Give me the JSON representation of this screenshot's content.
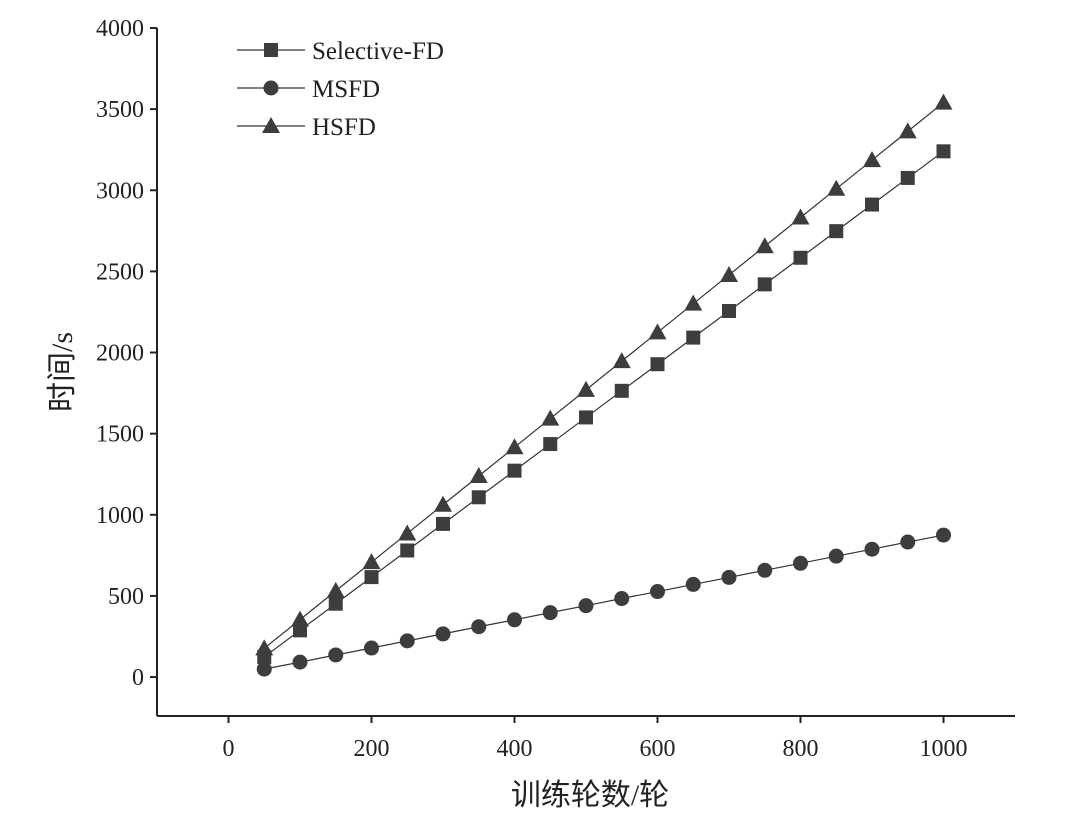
{
  "chart_data": {
    "type": "line",
    "title": "",
    "xlabel": "训练轮数/轮",
    "ylabel": "时间/s",
    "xlim": [
      -100,
      1100
    ],
    "ylim": [
      -240,
      4000
    ],
    "xticks": [
      0,
      200,
      400,
      600,
      800,
      1000
    ],
    "yticks": [
      0,
      500,
      1000,
      1500,
      2000,
      2500,
      3000,
      3500,
      4000
    ],
    "grid": false,
    "legend_position": "top-left",
    "x": [
      50,
      100,
      150,
      200,
      250,
      300,
      350,
      400,
      450,
      500,
      550,
      600,
      650,
      700,
      750,
      800,
      850,
      900,
      950,
      1000
    ],
    "series": [
      {
        "name": "Selective-FD",
        "marker": "square",
        "values": [
          124,
          288,
          452,
          616,
          780,
          944,
          1108,
          1272,
          1436,
          1600,
          1764,
          1928,
          2092,
          2256,
          2420,
          2584,
          2748,
          2912,
          3076,
          3240
        ]
      },
      {
        "name": "MSFD",
        "marker": "circle",
        "values": [
          49,
          92,
          136,
          179,
          223,
          266,
          310,
          353,
          397,
          440,
          484,
          527,
          571,
          614,
          658,
          701,
          745,
          788,
          832,
          875
        ]
      },
      {
        "name": "HSFD",
        "marker": "triangle",
        "values": [
          177,
          354,
          531,
          708,
          885,
          1062,
          1239,
          1416,
          1593,
          1770,
          1947,
          2124,
          2301,
          2478,
          2655,
          2832,
          3009,
          3186,
          3363,
          3540
        ]
      }
    ],
    "colors": {
      "marker": "#3d3d3d",
      "line": "#333333"
    }
  }
}
